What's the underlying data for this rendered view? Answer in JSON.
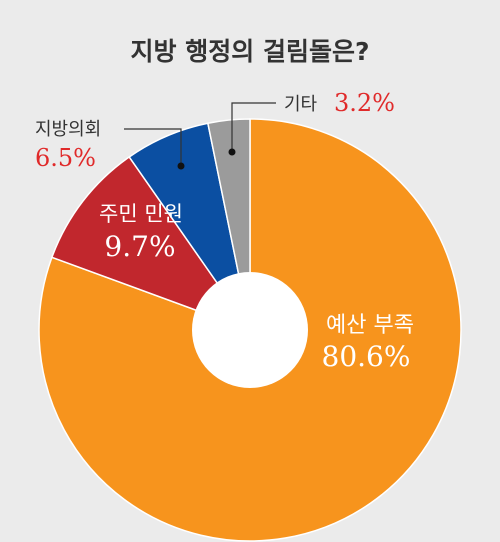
{
  "chart_data": {
    "type": "pie",
    "title": "지방 행정의 걸림돌은?",
    "unit": "%",
    "slices": [
      {
        "label": "예산 부족",
        "value": 80.6,
        "value_text": "80.6%",
        "color": "#f7941d"
      },
      {
        "label": "주민 민원",
        "value": 9.7,
        "value_text": "9.7%",
        "color": "#c1272d"
      },
      {
        "label": "지방의회",
        "value": 6.5,
        "value_text": "6.5%",
        "color": "#0b4fa2"
      },
      {
        "label": "기타",
        "value": 3.2,
        "value_text": "3.2%",
        "color": "#9b9b9b"
      }
    ],
    "donut": true,
    "legend": "none",
    "colors": {
      "background": "#ebebeb",
      "title": "#333333",
      "callout_value": "#e02a2a",
      "inner_label": "#ffffff",
      "callout_label": "#333333"
    }
  }
}
